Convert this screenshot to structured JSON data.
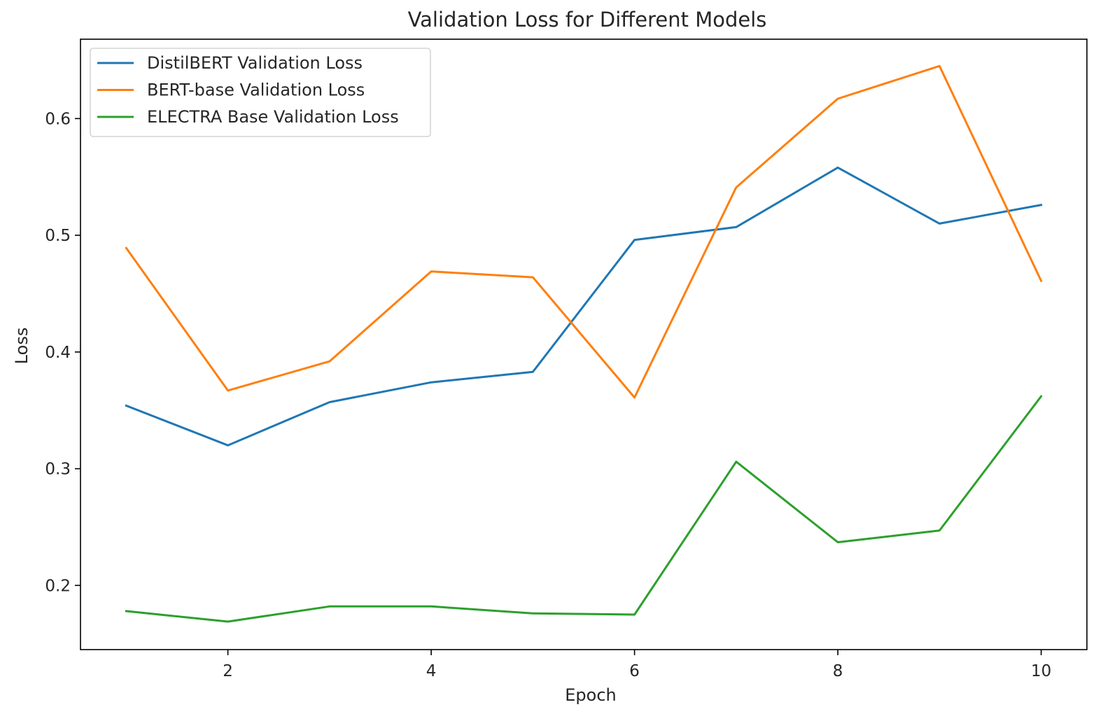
{
  "chart_data": {
    "type": "line",
    "title": "Validation Loss for Different Models",
    "xlabel": "Epoch",
    "ylabel": "Loss",
    "x": [
      1,
      2,
      3,
      4,
      5,
      6,
      7,
      8,
      9,
      10
    ],
    "xlim": [
      0.55,
      10.45
    ],
    "ylim": [
      0.145,
      0.668
    ],
    "xticks": [
      2,
      4,
      6,
      8,
      10
    ],
    "yticks": [
      0.2,
      0.3,
      0.4,
      0.5,
      0.6
    ],
    "grid": false,
    "legend_position": "top-left",
    "series": [
      {
        "name": "DistilBERT Validation Loss",
        "color": "#1f77b4",
        "values": [
          0.354,
          0.32,
          0.357,
          0.374,
          0.383,
          0.496,
          0.507,
          0.558,
          0.51,
          0.526
        ]
      },
      {
        "name": "BERT-base Validation Loss",
        "color": "#ff7f0e",
        "values": [
          0.489,
          0.367,
          0.392,
          0.469,
          0.464,
          0.361,
          0.541,
          0.617,
          0.645,
          0.461
        ]
      },
      {
        "name": "ELECTRA Base Validation Loss",
        "color": "#2ca02c",
        "values": [
          0.178,
          0.169,
          0.182,
          0.182,
          0.176,
          0.175,
          0.306,
          0.237,
          0.247,
          0.362
        ]
      }
    ]
  }
}
